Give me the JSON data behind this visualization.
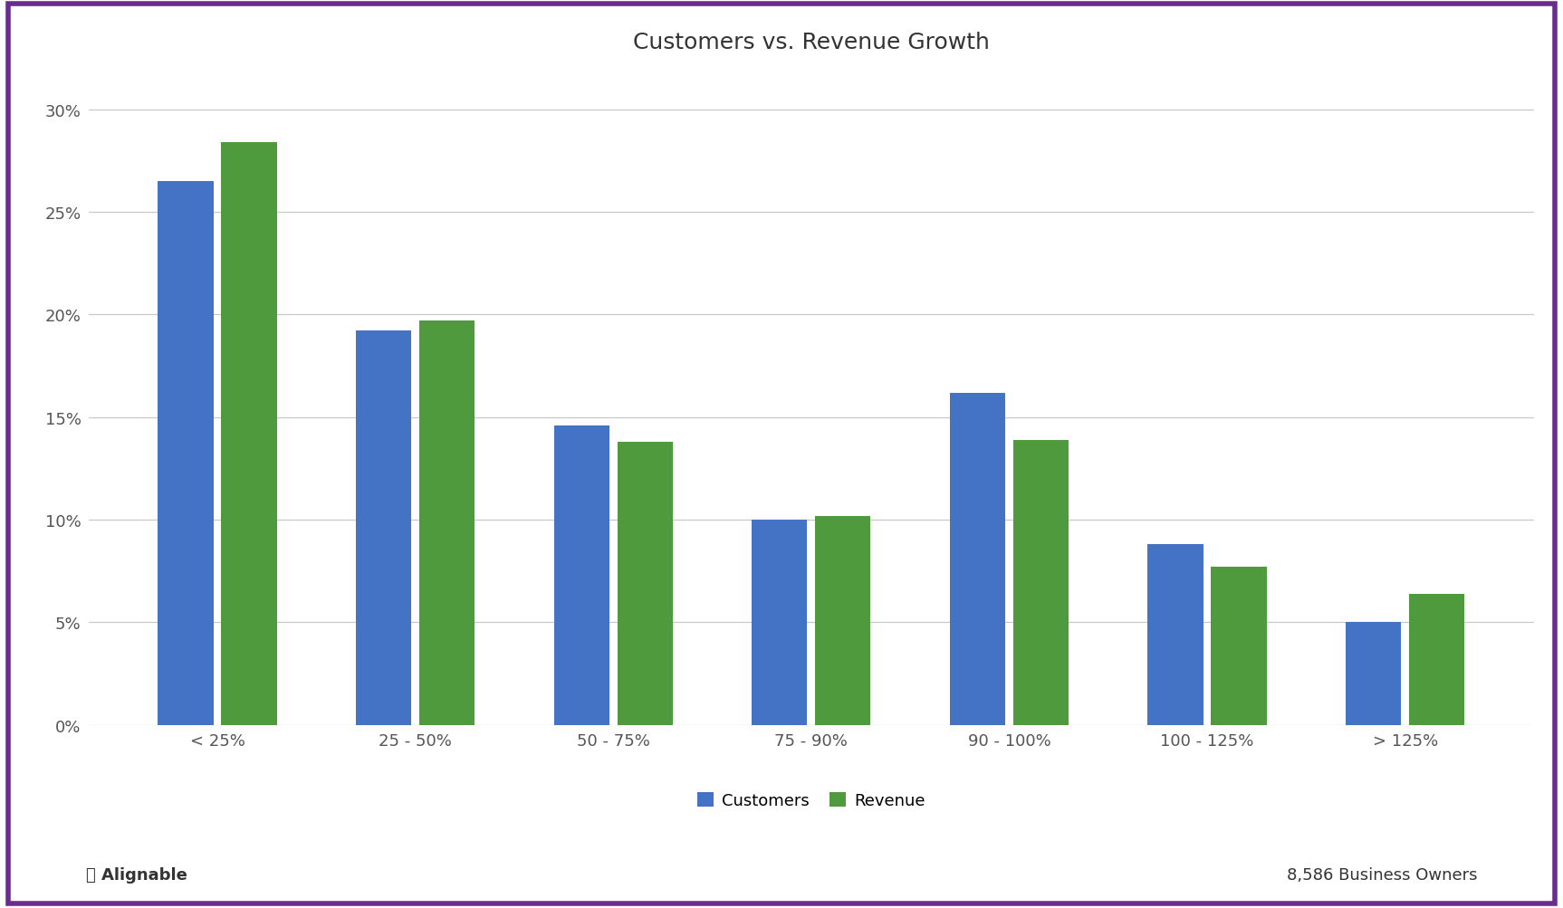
{
  "title": "Customers vs. Revenue Growth",
  "categories": [
    "< 25%",
    "25 - 50%",
    "50 - 75%",
    "75 - 90%",
    "90 - 100%",
    "100 - 125%",
    "> 125%"
  ],
  "customers": [
    26.5,
    19.2,
    14.6,
    10.0,
    16.2,
    8.8,
    5.0
  ],
  "revenue": [
    28.4,
    19.7,
    13.8,
    10.2,
    13.9,
    7.7,
    6.4
  ],
  "customers_color": "#4472C4",
  "revenue_color": "#4E9A3D",
  "background_color": "#FFFFFF",
  "border_color": "#6B2D8B",
  "grid_color": "#C8C8C8",
  "title_fontsize": 18,
  "tick_fontsize": 13,
  "legend_fontsize": 13,
  "ylabel_ticks": [
    0,
    5,
    10,
    15,
    20,
    25,
    30
  ],
  "ylabel_labels": [
    "0%",
    "5%",
    "10%",
    "15%",
    "20%",
    "25%",
    "30%"
  ],
  "ylim": [
    0,
    32
  ],
  "footer_left": "Alignable",
  "footer_right": "8,586 Business Owners",
  "legend_labels": [
    "Customers",
    "Revenue"
  ],
  "bar_width": 0.28,
  "bar_gap": 0.04
}
